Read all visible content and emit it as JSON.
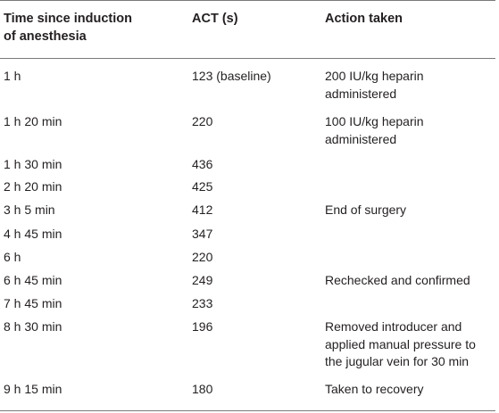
{
  "table": {
    "headers": {
      "time_line1": "Time since induction",
      "time_line2": "of anesthesia",
      "act": "ACT (s)",
      "action": "Action taken"
    },
    "rows": [
      {
        "time": "1 h",
        "act": "123 (baseline)",
        "action": [
          "200 IU/kg heparin",
          "administered"
        ]
      },
      {
        "time": "1 h 20 min",
        "act": "220",
        "action": [
          "100 IU/kg heparin",
          "administered"
        ]
      },
      {
        "time": "1 h 30 min",
        "act": "436",
        "action": []
      },
      {
        "time": "2 h 20 min",
        "act": "425",
        "action": []
      },
      {
        "time": "3 h 5 min",
        "act": "412",
        "action": [
          "End of surgery"
        ]
      },
      {
        "time": "4 h 45 min",
        "act": "347",
        "action": []
      },
      {
        "time": "6 h",
        "act": "220",
        "action": []
      },
      {
        "time": "6 h 45 min",
        "act": "249",
        "action": [
          "Rechecked and confirmed"
        ]
      },
      {
        "time": "7 h 45 min",
        "act": "233",
        "action": []
      },
      {
        "time": "8 h 30 min",
        "act": "196",
        "action": [
          "Removed introducer and",
          "applied manual pressure to",
          "the jugular vein for 30 min"
        ]
      },
      {
        "time": "9 h 15 min",
        "act": "180",
        "action": [
          "Taken to recovery"
        ]
      }
    ]
  }
}
